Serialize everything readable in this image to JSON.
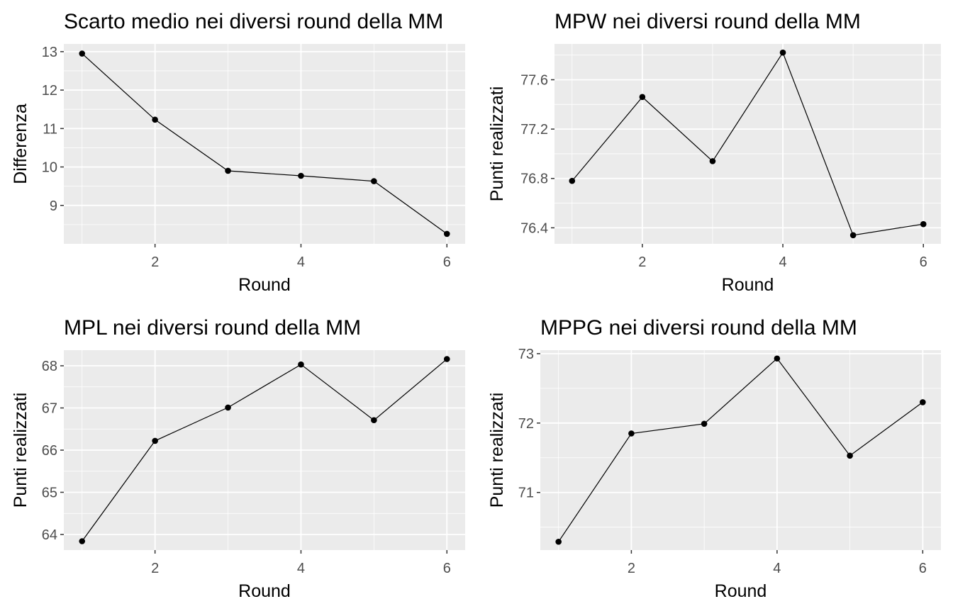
{
  "chart_data": [
    {
      "type": "line",
      "title": "Scarto medio nei diversi round della MM",
      "xlabel": "Round",
      "ylabel": "Differenza",
      "x": [
        1,
        2,
        3,
        4,
        5,
        6
      ],
      "series": [
        {
          "values": [
            12.95,
            11.23,
            9.9,
            9.77,
            9.63,
            8.26
          ]
        }
      ],
      "xlim": [
        0.75,
        6.25
      ],
      "ylim": [
        8.0,
        13.2
      ],
      "xticks": [
        2,
        4,
        6
      ],
      "xtick_labels": [
        "2",
        "4",
        "6"
      ],
      "yticks": [
        9,
        10,
        11,
        12,
        13
      ],
      "ytick_labels": [
        "9",
        "10",
        "11",
        "12",
        "13"
      ],
      "grid": true,
      "line_color": "#000000",
      "point_color": "#000000",
      "panel_bg": "#ebebeb"
    },
    {
      "type": "line",
      "title": "MPW nei diversi round della MM",
      "xlabel": "Round",
      "ylabel": "Punti realizzati",
      "x": [
        1,
        2,
        3,
        4,
        5,
        6
      ],
      "series": [
        {
          "values": [
            76.78,
            77.46,
            76.94,
            77.82,
            76.34,
            76.43
          ]
        }
      ],
      "xlim": [
        0.75,
        6.25
      ],
      "ylim": [
        76.27,
        77.89
      ],
      "xticks": [
        2,
        4,
        6
      ],
      "xtick_labels": [
        "2",
        "4",
        "6"
      ],
      "yticks": [
        76.4,
        76.8,
        77.2,
        77.6
      ],
      "ytick_labels": [
        "76.4",
        "76.8",
        "77.2",
        "77.6"
      ],
      "grid": true,
      "line_color": "#000000",
      "point_color": "#000000",
      "panel_bg": "#ebebeb"
    },
    {
      "type": "line",
      "title": "MPL nei diversi round della MM",
      "xlabel": "Round",
      "ylabel": "Punti realizzati",
      "x": [
        1,
        2,
        3,
        4,
        5,
        6
      ],
      "series": [
        {
          "values": [
            63.84,
            66.22,
            67.01,
            68.03,
            66.71,
            68.16
          ]
        }
      ],
      "xlim": [
        0.75,
        6.25
      ],
      "ylim": [
        63.63,
        68.37
      ],
      "xticks": [
        2,
        4,
        6
      ],
      "xtick_labels": [
        "2",
        "4",
        "6"
      ],
      "yticks": [
        64,
        65,
        66,
        67,
        68
      ],
      "ytick_labels": [
        "64",
        "65",
        "66",
        "67",
        "68"
      ],
      "grid": true,
      "line_color": "#000000",
      "point_color": "#000000",
      "panel_bg": "#ebebeb"
    },
    {
      "type": "line",
      "title": "MPPG nei diversi round della MM",
      "xlabel": "Round",
      "ylabel": "Punti realizzati",
      "x": [
        1,
        2,
        3,
        4,
        5,
        6
      ],
      "series": [
        {
          "values": [
            70.29,
            71.85,
            71.99,
            72.93,
            71.53,
            72.3
          ]
        }
      ],
      "xlim": [
        0.75,
        6.25
      ],
      "ylim": [
        70.17,
        73.05
      ],
      "xticks": [
        2,
        4,
        6
      ],
      "xtick_labels": [
        "2",
        "4",
        "6"
      ],
      "yticks": [
        71,
        72,
        73
      ],
      "ytick_labels": [
        "71",
        "72",
        "73"
      ],
      "grid": true,
      "line_color": "#000000",
      "point_color": "#000000",
      "panel_bg": "#ebebeb"
    }
  ]
}
